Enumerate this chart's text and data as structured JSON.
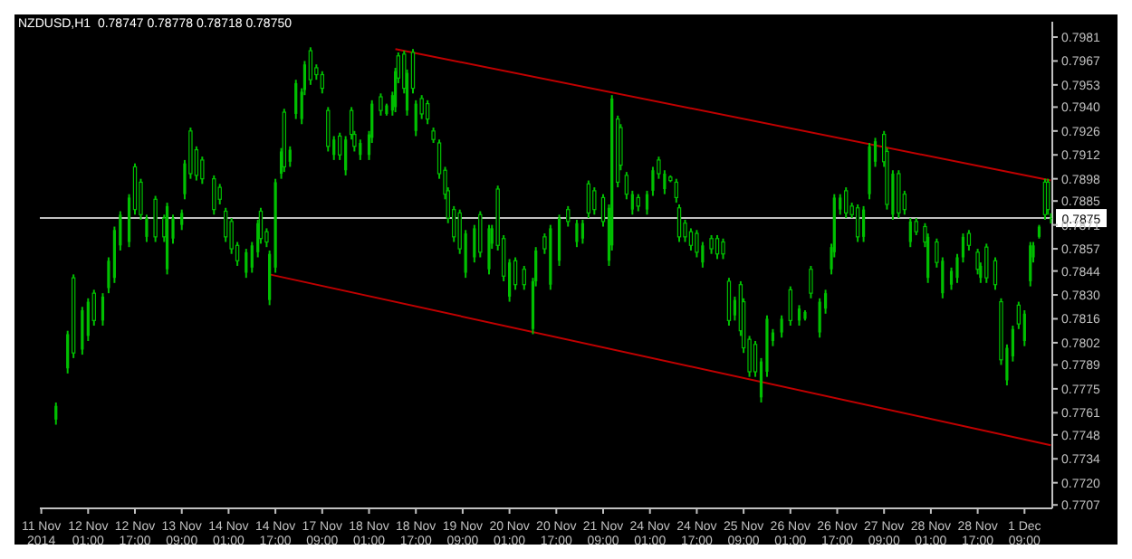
{
  "chart_data": {
    "type": "candlestick",
    "title": "NZDUSD,H1  0.78747 0.78778 0.78718 0.78750",
    "color": "#00c000",
    "categories": [
      "11 Nov 2014",
      null,
      null,
      null,
      null,
      null,
      null,
      null,
      null,
      null,
      null,
      null,
      null,
      null,
      null,
      null,
      "12 Nov 01:00",
      null,
      null,
      null,
      null,
      null,
      null,
      null,
      null,
      null,
      null,
      null,
      null,
      null,
      null,
      null,
      "12 Nov 17:00",
      null,
      null,
      null,
      null,
      null,
      null,
      null,
      null,
      null,
      null,
      null,
      null,
      null,
      null,
      null,
      "13 Nov 09:00",
      null,
      null,
      null,
      null,
      null,
      null,
      null,
      null,
      null,
      null,
      null,
      null,
      null,
      null,
      null,
      "14 Nov 01:00",
      null,
      null,
      null,
      null,
      null,
      null,
      null,
      null,
      null,
      null,
      null,
      null,
      null,
      null,
      null,
      "14 Nov 17:00",
      null,
      null,
      null,
      null,
      null,
      null,
      null,
      null,
      null,
      null,
      null,
      null,
      null,
      null,
      null,
      "17 Nov 09:00",
      null,
      null,
      null,
      null,
      null,
      null,
      null,
      null,
      null,
      null,
      null,
      null,
      null,
      null,
      null,
      "18 Nov 01:00",
      null,
      null,
      null,
      null,
      null,
      null,
      null,
      null,
      null,
      null,
      null,
      null,
      null,
      null,
      null,
      "18 Nov 17:00",
      null,
      null,
      null,
      null,
      null,
      null,
      null,
      null,
      null,
      null,
      null,
      null,
      null,
      null,
      null,
      "19 Nov 09:00",
      null,
      null,
      null,
      null,
      null,
      null,
      null,
      null,
      null,
      null,
      null,
      null,
      null,
      null,
      null,
      "20 Nov 01:00",
      null,
      null,
      null,
      null,
      null,
      null,
      null,
      null,
      null,
      null,
      null,
      null,
      null,
      null,
      null,
      "20 Nov 17:00",
      null,
      null,
      null,
      null,
      null,
      null,
      null,
      null,
      null,
      null,
      null,
      null,
      null,
      null,
      null,
      "21 Nov 09:00",
      null,
      null,
      null,
      null,
      null,
      null,
      null,
      null,
      null,
      null,
      null,
      null,
      null,
      null,
      null,
      "24 Nov 01:00",
      null,
      null,
      null,
      null,
      null,
      null,
      null,
      null,
      null,
      null,
      null,
      null,
      null,
      null,
      null,
      "24 Nov 17:00",
      null,
      null,
      null,
      null,
      null,
      null,
      null,
      null,
      null,
      null,
      null,
      null,
      null,
      null,
      null,
      "25 Nov 09:00",
      null,
      null,
      null,
      null,
      null,
      null,
      null,
      null,
      null,
      null,
      null,
      null,
      null,
      null,
      null,
      "26 Nov 01:00",
      null,
      null,
      null,
      null,
      null,
      null,
      null,
      null,
      null,
      null,
      null,
      null,
      null,
      null,
      null,
      "26 Nov 17:00",
      null,
      null,
      null,
      null,
      null,
      null,
      null,
      null,
      null,
      null,
      null,
      null,
      null,
      null,
      null,
      "27 Nov 09:00",
      null,
      null,
      null,
      null,
      null,
      null,
      null,
      null,
      null,
      null,
      null,
      null,
      null,
      null,
      null,
      "28 Nov 01:00",
      null,
      null,
      null,
      null,
      null,
      null,
      null,
      null,
      null,
      null,
      null,
      null,
      null,
      null,
      null,
      "28 Nov 17:00",
      null,
      null,
      null,
      null,
      null,
      null,
      null,
      null,
      null,
      null,
      null,
      null,
      null,
      null,
      null,
      "1 Dec 09:00",
      null,
      null,
      null,
      null,
      null,
      null,
      null,
      null,
      null
    ],
    "ohlc": [
      null,
      null,
      null,
      null,
      null,
      [
        0.7757,
        0.7767,
        0.7754,
        0.7765
      ],
      null,
      null,
      null,
      [
        0.7787,
        0.7809,
        0.7784,
        0.7807
      ],
      null,
      [
        0.784,
        0.7842,
        0.7793,
        0.7796
      ],
      null,
      null,
      [
        0.7798,
        0.7823,
        0.7795,
        0.7821
      ],
      null,
      [
        0.7806,
        0.7828,
        0.7803,
        0.7826
      ],
      null,
      [
        0.7831,
        0.7833,
        0.7812,
        0.7815
      ],
      null,
      null,
      [
        0.7815,
        0.7831,
        0.7812,
        0.7829
      ],
      null,
      [
        0.7834,
        0.7852,
        0.7831,
        0.785
      ],
      null,
      [
        0.784,
        0.787,
        0.7837,
        0.7868
      ],
      null,
      [
        0.7859,
        0.7879,
        0.7856,
        0.7877
      ],
      null,
      null,
      [
        0.7861,
        0.7889,
        0.7858,
        0.7887
      ],
      null,
      [
        0.7905,
        0.7907,
        0.7877,
        0.788
      ],
      null,
      [
        0.7896,
        0.7898,
        0.7874,
        0.7877
      ],
      null,
      [
        0.7864,
        0.7877,
        0.7861,
        0.7875
      ],
      null,
      null,
      [
        0.7886,
        0.7888,
        0.7861,
        0.7864
      ],
      null,
      null,
      [
        0.7875,
        0.7877,
        0.7861,
        0.7864
      ],
      [
        0.7845,
        0.7884,
        0.7842,
        0.7882
      ],
      null,
      [
        0.7863,
        0.7877,
        0.786,
        0.7875
      ],
      null,
      null,
      [
        0.7871,
        0.788,
        0.7868,
        0.7878
      ],
      [
        0.7889,
        0.7909,
        0.7886,
        0.7907
      ],
      null,
      [
        0.7926,
        0.7928,
        0.7898,
        0.7901
      ],
      null,
      [
        0.7915,
        0.7917,
        0.7897,
        0.79
      ],
      null,
      [
        0.7909,
        0.7911,
        0.7895,
        0.7898
      ],
      null,
      null,
      null,
      [
        0.7898,
        0.79,
        0.7877,
        0.788
      ],
      null,
      [
        0.7893,
        0.7895,
        0.7883,
        0.7886
      ],
      null,
      [
        0.7879,
        0.7881,
        0.7861,
        0.7864
      ],
      null,
      [
        0.7873,
        0.7875,
        0.7854,
        0.7857
      ],
      null,
      [
        0.7859,
        0.7861,
        0.7847,
        0.785
      ],
      null,
      null,
      [
        0.7843,
        0.7857,
        0.784,
        0.7855
      ],
      null,
      [
        0.7846,
        0.7861,
        0.7843,
        0.7859
      ],
      null,
      [
        0.7855,
        0.7874,
        0.7852,
        0.7872
      ],
      [
        0.7879,
        0.7881,
        0.786,
        0.7863
      ],
      null,
      [
        0.7867,
        0.7869,
        0.7858,
        0.7861
      ],
      [
        0.7827,
        0.7856,
        0.7824,
        0.7854
      ],
      null,
      [
        0.7846,
        0.7898,
        0.7843,
        0.7896
      ],
      null,
      [
        0.7901,
        0.7916,
        0.7898,
        0.7914
      ],
      [
        0.7937,
        0.7939,
        0.7902,
        0.7905
      ],
      null,
      [
        0.7908,
        0.7917,
        0.7905,
        0.7915
      ],
      null,
      [
        0.7936,
        0.7956,
        0.7933,
        0.7954
      ],
      null,
      [
        0.7933,
        0.7951,
        0.793,
        0.7949
      ],
      [
        0.795,
        0.7967,
        0.7947,
        0.7965
      ],
      null,
      [
        0.7973,
        0.7975,
        0.7953,
        0.7956
      ],
      null,
      [
        0.7963,
        0.7965,
        0.7956,
        0.7959
      ],
      null,
      [
        0.7959,
        0.7961,
        0.7948,
        0.7951
      ],
      null,
      [
        0.7938,
        0.794,
        0.7914,
        0.7917
      ],
      null,
      [
        0.7912,
        0.7923,
        0.7909,
        0.7921
      ],
      null,
      [
        0.7923,
        0.7925,
        0.7909,
        0.7912
      ],
      null,
      [
        0.7903,
        0.7923,
        0.79,
        0.7921
      ],
      null,
      [
        0.7938,
        0.794,
        0.7921,
        0.7924
      ],
      [
        0.7924,
        0.7926,
        0.7914,
        0.7917
      ],
      null,
      [
        0.7912,
        0.7921,
        0.7909,
        0.7919
      ],
      null,
      null,
      [
        0.7912,
        0.7926,
        0.7909,
        0.7924
      ],
      [
        0.7922,
        0.7944,
        0.7919,
        0.7942
      ],
      null,
      null,
      [
        0.7946,
        0.7948,
        0.7935,
        0.7938
      ],
      null,
      [
        0.7936,
        0.7942,
        0.7935,
        0.7941
      ],
      null,
      [
        0.7938,
        0.7949,
        0.7935,
        0.7947
      ],
      [
        0.794,
        0.7963,
        0.7937,
        0.7961
      ],
      [
        0.797,
        0.7972,
        0.7954,
        0.7957
      ],
      null,
      [
        0.7971,
        0.7973,
        0.7948,
        0.7951
      ],
      [
        0.7938,
        0.7962,
        0.7935,
        0.796
      ],
      null,
      [
        0.7972,
        0.7974,
        0.7948,
        0.7951
      ],
      [
        0.7926,
        0.7944,
        0.7923,
        0.7942
      ],
      null,
      [
        0.7945,
        0.7947,
        0.7933,
        0.7936
      ],
      null,
      [
        0.7942,
        0.7944,
        0.793,
        0.7933
      ],
      null,
      [
        0.7926,
        0.7928,
        0.7919,
        0.7921
      ],
      null,
      [
        0.7919,
        0.7921,
        0.7898,
        0.7901
      ],
      null,
      [
        0.7903,
        0.7905,
        0.7886,
        0.7889
      ],
      [
        0.7891,
        0.7893,
        0.7872,
        0.7875
      ],
      null,
      [
        0.788,
        0.7882,
        0.7861,
        0.7864
      ],
      null,
      [
        0.7878,
        0.788,
        0.7854,
        0.7857
      ],
      null,
      [
        0.7843,
        0.7868,
        0.784,
        0.7866
      ],
      null,
      null,
      [
        0.7852,
        0.7871,
        0.7849,
        0.7869
      ],
      null,
      [
        0.7877,
        0.7879,
        0.7852,
        0.7855
      ],
      null,
      null,
      [
        0.7845,
        0.7871,
        0.7842,
        0.7869
      ],
      [
        0.786,
        0.7871,
        0.7857,
        0.7869
      ],
      null,
      [
        0.7892,
        0.7894,
        0.7856,
        0.7859
      ],
      null,
      [
        0.7863,
        0.7865,
        0.7838,
        0.7841
      ],
      null,
      [
        0.7829,
        0.7851,
        0.7826,
        0.7849
      ],
      null,
      [
        0.785,
        0.7852,
        0.7833,
        0.7836
      ],
      null,
      null,
      [
        0.7845,
        0.7847,
        0.7833,
        0.7836
      ],
      null,
      null,
      [
        0.781,
        0.784,
        0.7807,
        0.7838
      ],
      [
        0.7838,
        0.7858,
        0.7835,
        0.7856
      ],
      null,
      null,
      [
        0.7864,
        0.7866,
        0.7854,
        0.7857
      ],
      null,
      [
        0.7836,
        0.7871,
        0.7833,
        0.7869
      ],
      null,
      null,
      [
        0.785,
        0.7877,
        0.7847,
        0.7875
      ],
      null,
      null,
      [
        0.788,
        0.7882,
        0.787,
        0.7873
      ],
      null,
      null,
      [
        0.7861,
        0.7874,
        0.7858,
        0.7872
      ],
      null,
      [
        0.7863,
        0.7874,
        0.786,
        0.7872
      ],
      null,
      [
        0.7895,
        0.7897,
        0.7875,
        0.7878
      ],
      null,
      [
        0.7891,
        0.7893,
        0.7877,
        0.788
      ],
      null,
      null,
      [
        0.7887,
        0.7889,
        0.787,
        0.7873
      ],
      null,
      [
        0.785,
        0.7883,
        0.7847,
        0.7881
      ],
      [
        0.7859,
        0.7947,
        0.7856,
        0.7945
      ],
      null,
      [
        0.7933,
        0.7935,
        0.7893,
        0.7896
      ],
      [
        0.7928,
        0.793,
        0.7903,
        0.7906
      ],
      null,
      [
        0.79,
        0.7902,
        0.7886,
        0.7889
      ],
      null,
      [
        0.788,
        0.7891,
        0.7877,
        0.7889
      ],
      null,
      [
        0.7887,
        0.7889,
        0.7879,
        0.7882
      ],
      null,
      null,
      [
        0.788,
        0.7891,
        0.7877,
        0.7889
      ],
      null,
      [
        0.7891,
        0.7905,
        0.7888,
        0.7903
      ],
      null,
      [
        0.7909,
        0.7911,
        0.7898,
        0.7901
      ],
      null,
      [
        0.7892,
        0.7903,
        0.7889,
        0.7901
      ],
      null,
      [
        0.7899,
        0.79,
        0.7896,
        0.7897
      ],
      null,
      [
        0.7896,
        0.7898,
        0.7884,
        0.7887
      ],
      [
        0.7881,
        0.7883,
        0.7861,
        0.7864
      ],
      null,
      [
        0.7872,
        0.7874,
        0.7861,
        0.7864
      ],
      null,
      [
        0.7867,
        0.7869,
        0.7856,
        0.7859
      ],
      null,
      [
        0.7866,
        0.7868,
        0.7852,
        0.7855
      ],
      null,
      [
        0.7849,
        0.7861,
        0.7846,
        0.7859
      ],
      null,
      null,
      [
        0.7863,
        0.7865,
        0.7854,
        0.7857
      ],
      null,
      [
        0.7863,
        0.7865,
        0.7851,
        0.7854
      ],
      null,
      [
        0.7861,
        0.7863,
        0.7851,
        0.7854
      ],
      null,
      [
        0.7838,
        0.784,
        0.7812,
        0.7815
      ],
      null,
      [
        0.7818,
        0.7829,
        0.7815,
        0.7827
      ],
      null,
      [
        0.7836,
        0.7838,
        0.7806,
        0.7809
      ],
      [
        0.7826,
        0.7828,
        0.7796,
        0.7799
      ],
      null,
      [
        0.7804,
        0.7806,
        0.7782,
        0.7785
      ],
      null,
      [
        0.7801,
        0.7803,
        0.7782,
        0.7785
      ],
      null,
      [
        0.777,
        0.7793,
        0.7767,
        0.7791
      ],
      null,
      [
        0.7785,
        0.7818,
        0.7782,
        0.7816
      ],
      null,
      [
        0.7803,
        0.781,
        0.78,
        0.7808
      ],
      null,
      null,
      [
        0.7808,
        0.7818,
        0.7805,
        0.7816
      ],
      null,
      null,
      [
        0.7833,
        0.7835,
        0.7812,
        0.7815
      ],
      null,
      null,
      [
        0.7815,
        0.7824,
        0.7812,
        0.7822
      ],
      null,
      [
        0.7816,
        0.7821,
        0.7815,
        0.782
      ],
      null,
      [
        0.7845,
        0.7847,
        0.7828,
        0.7831
      ],
      null,
      null,
      [
        0.7808,
        0.7828,
        0.7805,
        0.7826
      ],
      null,
      [
        0.7822,
        0.7833,
        0.7819,
        0.7831
      ],
      null,
      [
        0.7845,
        0.786,
        0.7842,
        0.7858
      ],
      [
        0.7855,
        0.7889,
        0.7852,
        0.7887
      ],
      null,
      [
        0.788,
        0.7889,
        0.7877,
        0.7887
      ],
      null,
      [
        0.7891,
        0.7893,
        0.7875,
        0.7878
      ],
      null,
      [
        0.7882,
        0.7884,
        0.7875,
        0.7877
      ],
      null,
      [
        0.7881,
        0.7883,
        0.7861,
        0.7864
      ],
      null,
      [
        0.7864,
        0.7882,
        0.7861,
        0.788
      ],
      null,
      [
        0.7889,
        0.7919,
        0.7886,
        0.7917
      ],
      null,
      [
        0.7908,
        0.7922,
        0.7905,
        0.792
      ],
      null,
      null,
      [
        0.7924,
        0.7926,
        0.7905,
        0.7908
      ],
      [
        0.7914,
        0.7916,
        0.788,
        0.7883
      ],
      null,
      [
        0.7877,
        0.7903,
        0.7874,
        0.7901
      ],
      null,
      [
        0.7901,
        0.7903,
        0.7875,
        0.7878
      ],
      null,
      [
        0.7889,
        0.7891,
        0.7877,
        0.788
      ],
      null,
      [
        0.7861,
        0.7875,
        0.7858,
        0.7873
      ],
      null,
      [
        0.7873,
        0.7875,
        0.7865,
        0.7867
      ],
      null,
      null,
      [
        0.787,
        0.7872,
        0.7858,
        0.7861
      ],
      [
        0.784,
        0.7866,
        0.7837,
        0.7864
      ],
      null,
      null,
      [
        0.7861,
        0.7863,
        0.7846,
        0.7849
      ],
      null,
      [
        0.7831,
        0.7852,
        0.7828,
        0.785
      ],
      null,
      null,
      [
        0.7836,
        0.7846,
        0.7833,
        0.7844
      ],
      null,
      [
        0.784,
        0.7854,
        0.7837,
        0.7852
      ],
      null,
      [
        0.7852,
        0.7866,
        0.7849,
        0.7864
      ],
      null,
      [
        0.7866,
        0.7868,
        0.7856,
        0.7859
      ],
      null,
      null,
      [
        0.7855,
        0.7857,
        0.7842,
        0.7845
      ],
      [
        0.784,
        0.7849,
        0.7837,
        0.7847
      ],
      null,
      [
        0.7858,
        0.786,
        0.7837,
        0.784
      ],
      null,
      null,
      [
        0.785,
        0.7852,
        0.7833,
        0.7836
      ],
      null,
      [
        0.7826,
        0.7828,
        0.7789,
        0.7792
      ],
      null,
      [
        0.778,
        0.7801,
        0.7777,
        0.7799
      ],
      null,
      [
        0.7794,
        0.7812,
        0.7791,
        0.781
      ],
      null,
      [
        0.7824,
        0.7826,
        0.781,
        0.7813
      ],
      null,
      [
        0.7803,
        0.7821,
        0.78,
        0.7819
      ],
      null,
      [
        0.7838,
        0.7861,
        0.7835,
        0.7859
      ],
      [
        0.7852,
        0.7861,
        0.7849,
        0.7859
      ],
      null,
      [
        0.7864,
        0.7871,
        0.7863,
        0.787
      ],
      null,
      [
        0.7896,
        0.7898,
        0.7874,
        0.7877
      ],
      [
        0.7896,
        0.7898,
        0.7877,
        0.788
      ],
      [
        0.78747,
        0.78778,
        0.78718,
        0.7875
      ]
    ],
    "series": [
      {
        "type": "line",
        "color": "#c00000",
        "values": [
          null,
          null,
          null,
          null,
          null,
          null,
          null,
          null,
          null,
          null,
          null,
          null,
          null,
          null,
          null,
          null,
          null,
          null,
          null,
          null,
          null,
          null,
          null,
          null,
          null,
          null,
          null,
          null,
          null,
          null,
          null,
          null,
          null,
          null,
          null,
          null,
          null,
          null,
          null,
          null,
          null,
          null,
          null,
          null,
          null,
          null,
          null,
          null,
          null,
          null,
          null,
          null,
          null,
          null,
          null,
          null,
          null,
          null,
          null,
          null,
          null,
          null,
          null,
          null,
          null,
          null,
          null,
          null,
          null,
          null,
          null,
          null,
          null,
          null,
          null,
          null,
          null,
          null,
          null,
          null,
          null,
          null,
          null,
          null,
          null,
          null,
          null,
          null,
          null,
          null,
          null,
          null,
          null,
          null,
          null,
          null,
          null,
          null,
          null,
          null,
          null,
          null,
          null,
          null,
          null,
          null,
          null,
          null,
          null,
          null,
          null,
          null,
          null,
          null,
          null,
          null,
          null,
          null,
          null,
          null,
          null,
          0.7974,
          null,
          null,
          null,
          null,
          null,
          null,
          null,
          null,
          null,
          null,
          null,
          null,
          null,
          null,
          null,
          null,
          null,
          null,
          null,
          null,
          null,
          null,
          null,
          null,
          null,
          null,
          null,
          null,
          null,
          null,
          null,
          null,
          null,
          null,
          null,
          null,
          null,
          null,
          null,
          null,
          null,
          null,
          null,
          null,
          null,
          null,
          null,
          null,
          null,
          null,
          null,
          null,
          null,
          null,
          null,
          null,
          null,
          null,
          null,
          null,
          null,
          null,
          null,
          null,
          null,
          null,
          null,
          null,
          null,
          null,
          null,
          null,
          null,
          null,
          null,
          null,
          null,
          null,
          null,
          null,
          null,
          null,
          null,
          null,
          null,
          null,
          null,
          null,
          null,
          null,
          null,
          null,
          null,
          null,
          null,
          null,
          null,
          null,
          null,
          null,
          null,
          null,
          null,
          null,
          null,
          null,
          null,
          null,
          null,
          null,
          null,
          null,
          null,
          null,
          null,
          null,
          null,
          null,
          null,
          null,
          null,
          null,
          null,
          null,
          null,
          null,
          null,
          null,
          null,
          null,
          null,
          null,
          null,
          null,
          null,
          null,
          null,
          null,
          null,
          null,
          null,
          null,
          null,
          null,
          null,
          null,
          null,
          null,
          null,
          null,
          null,
          null,
          null,
          null,
          null,
          null,
          null,
          null,
          null,
          null,
          null,
          null,
          null,
          null,
          null,
          null,
          null,
          null,
          null,
          null,
          null,
          null,
          null,
          null,
          null,
          null,
          null,
          null,
          null,
          null,
          null,
          null,
          null,
          null,
          null,
          null,
          null,
          null,
          null,
          null,
          null,
          null,
          null,
          null,
          null,
          null,
          null,
          null,
          null,
          null,
          null,
          null,
          null,
          null,
          null,
          null,
          null,
          null,
          null,
          null,
          null,
          null,
          null,
          null,
          null,
          null,
          null,
          null,
          null,
          null,
          null,
          null,
          null,
          0.7897
        ]
      },
      {
        "type": "line",
        "color": "#c00000",
        "values": [
          null,
          null,
          null,
          null,
          null,
          null,
          null,
          null,
          null,
          null,
          null,
          null,
          null,
          null,
          null,
          null,
          null,
          null,
          null,
          null,
          null,
          null,
          null,
          null,
          null,
          null,
          null,
          null,
          null,
          null,
          null,
          null,
          null,
          null,
          null,
          null,
          null,
          null,
          null,
          null,
          null,
          null,
          null,
          null,
          null,
          null,
          null,
          null,
          null,
          null,
          null,
          null,
          null,
          null,
          null,
          null,
          null,
          null,
          null,
          null,
          null,
          null,
          null,
          null,
          null,
          null,
          null,
          null,
          null,
          null,
          null,
          null,
          null,
          null,
          null,
          null,
          null,
          null,
          0.7842,
          null,
          null,
          null,
          null,
          null,
          null,
          null,
          null,
          null,
          null,
          null,
          null,
          null,
          null,
          null,
          null,
          null,
          null,
          null,
          null,
          null,
          null,
          null,
          null,
          null,
          null,
          null,
          null,
          null,
          null,
          null,
          null,
          null,
          null,
          null,
          null,
          null,
          null,
          null,
          null,
          null,
          null,
          null,
          null,
          null,
          null,
          null,
          null,
          null,
          null,
          null,
          null,
          null,
          null,
          null,
          null,
          null,
          null,
          null,
          null,
          null,
          null,
          null,
          null,
          null,
          null,
          null,
          null,
          null,
          null,
          null,
          null,
          null,
          null,
          null,
          null,
          null,
          null,
          null,
          null,
          null,
          null,
          null,
          null,
          null,
          null,
          null,
          null,
          null,
          null,
          null,
          null,
          null,
          null,
          null,
          null,
          null,
          null,
          null,
          null,
          null,
          null,
          null,
          null,
          null,
          null,
          null,
          null,
          null,
          null,
          null,
          null,
          null,
          null,
          null,
          null,
          null,
          null,
          null,
          null,
          null,
          null,
          null,
          null,
          null,
          null,
          null,
          null,
          null,
          null,
          null,
          null,
          null,
          null,
          null,
          null,
          null,
          null,
          null,
          null,
          null,
          null,
          null,
          null,
          null,
          null,
          null,
          null,
          null,
          null,
          null,
          null,
          null,
          null,
          null,
          null,
          null,
          null,
          null,
          null,
          null,
          null,
          null,
          null,
          null,
          null,
          null,
          null,
          null,
          null,
          null,
          null,
          null,
          null,
          null,
          null,
          null,
          null,
          null,
          null,
          null,
          null,
          null,
          null,
          null,
          null,
          null,
          null,
          null,
          null,
          null,
          null,
          null,
          null,
          null,
          null,
          null,
          null,
          null,
          null,
          null,
          null,
          null,
          null,
          null,
          null,
          null,
          null,
          null,
          null,
          null,
          null,
          null,
          null,
          null,
          null,
          null,
          null,
          null,
          null,
          null,
          null,
          null,
          null,
          null,
          null,
          null,
          null,
          null,
          null,
          null,
          null,
          null,
          null,
          null,
          null,
          null,
          null,
          null,
          null,
          null,
          null,
          null,
          null,
          null,
          null,
          null,
          null,
          null,
          null,
          null,
          null,
          null,
          null,
          null,
          null,
          null,
          null,
          null,
          null,
          null,
          null,
          null,
          null,
          null,
          null,
          0.7742
        ]
      }
    ],
    "ref_lines": [
      {
        "axis": "y",
        "value": 0.7875,
        "label": "0.7875",
        "color": "#c0c0c0"
      }
    ],
    "ylim": [
      0.7705,
      0.799
    ],
    "yticks": [
      0.7981,
      0.7967,
      0.7953,
      {
        "value": 0.794,
        "label": "0.7940"
      },
      0.7926,
      0.7912,
      0.7898,
      0.7885,
      0.7871,
      0.7857,
      0.7844,
      {
        "value": 0.783,
        "label": "0.7830"
      },
      0.7816,
      0.7802,
      0.7789,
      0.7775,
      0.7761,
      0.7748,
      0.7734,
      {
        "value": 0.772,
        "label": "0.7720"
      },
      0.7707
    ]
  }
}
